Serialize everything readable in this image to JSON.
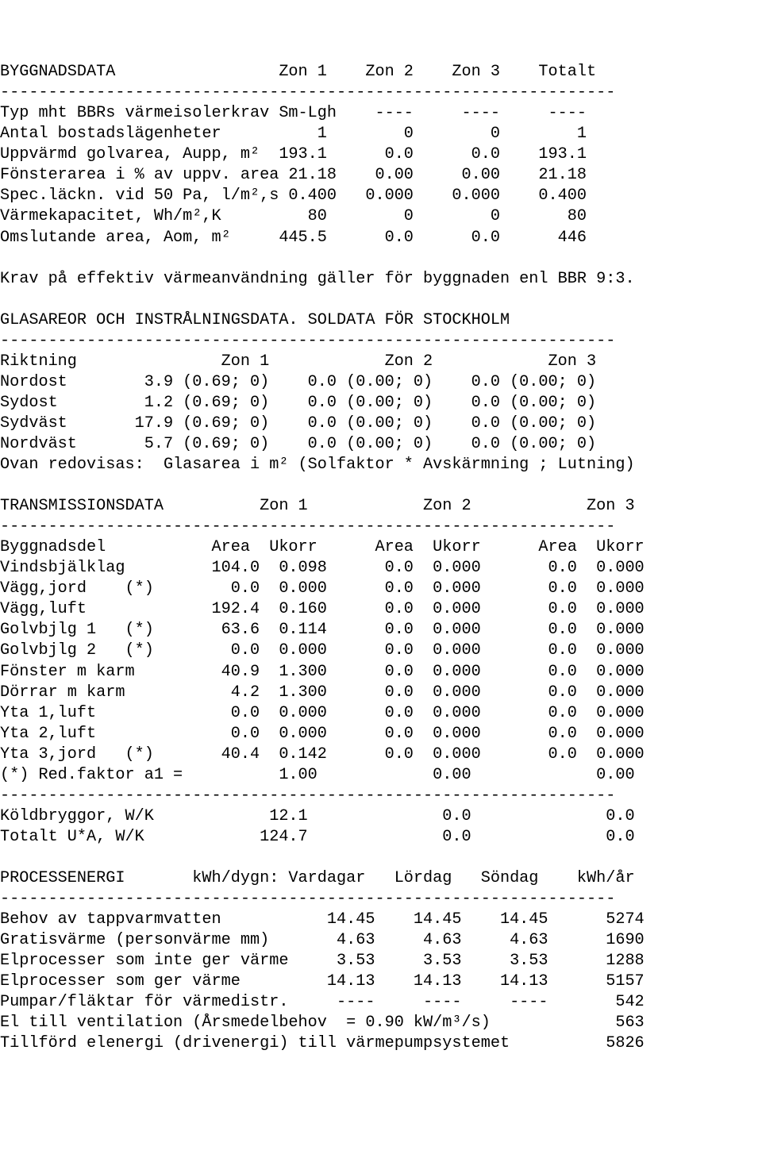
{
  "lines": [
    "BYGGNADSDATA                 Zon 1    Zon 2    Zon 3    Totalt",
    "----------------------------------------------------------------",
    "Typ mht BBRs värmeisolerkrav Sm-Lgh    ----     ----     ----",
    "Antal bostadslägenheter          1        0        0        1",
    "Uppvärmd golvarea, Aupp, m²  193.1      0.0      0.0    193.1",
    "Fönsterarea i % av uppv. area 21.18    0.00     0.00    21.18",
    "Spec.läckn. vid 50 Pa, l/m²,s 0.400   0.000    0.000    0.400",
    "Värmekapacitet, Wh/m²,K         80        0        0       80",
    "Omslutande area, Aom, m²     445.5      0.0      0.0      446",
    "",
    "Krav på effektiv värmeanvändning gäller för byggnaden enl BBR 9:3.",
    "",
    "GLASAREOR OCH INSTRÅLNINGSDATA. SOLDATA FÖR STOCKHOLM",
    "----------------------------------------------------------------",
    "Riktning               Zon 1            Zon 2            Zon 3",
    "Nordost        3.9 (0.69; 0)    0.0 (0.00; 0)    0.0 (0.00; 0)",
    "Sydost         1.2 (0.69; 0)    0.0 (0.00; 0)    0.0 (0.00; 0)",
    "Sydväst       17.9 (0.69; 0)    0.0 (0.00; 0)    0.0 (0.00; 0)",
    "Nordväst       5.7 (0.69; 0)    0.0 (0.00; 0)    0.0 (0.00; 0)",
    "Ovan redovisas:  Glasarea i m² (Solfaktor * Avskärmning ; Lutning)",
    "",
    "TRANSMISSIONSDATA          Zon 1            Zon 2            Zon 3",
    "----------------------------------------------------------------",
    "Byggnadsdel           Area  Ukorr      Area  Ukorr      Area  Ukorr",
    "Vindsbjälklag         104.0  0.098      0.0  0.000       0.0  0.000",
    "Vägg,jord    (*)        0.0  0.000      0.0  0.000       0.0  0.000",
    "Vägg,luft             192.4  0.160      0.0  0.000       0.0  0.000",
    "Golvbjlg 1   (*)       63.6  0.114      0.0  0.000       0.0  0.000",
    "Golvbjlg 2   (*)        0.0  0.000      0.0  0.000       0.0  0.000",
    "Fönster m karm         40.9  1.300      0.0  0.000       0.0  0.000",
    "Dörrar m karm           4.2  1.300      0.0  0.000       0.0  0.000",
    "Yta 1,luft              0.0  0.000      0.0  0.000       0.0  0.000",
    "Yta 2,luft              0.0  0.000      0.0  0.000       0.0  0.000",
    "Yta 3,jord   (*)       40.4  0.142      0.0  0.000       0.0  0.000",
    "(*) Red.faktor a1 =          1.00            0.00             0.00",
    "----------------------------------------------------------------",
    "Köldbryggor, W/K            12.1              0.0              0.0",
    "Totalt U*A, W/K            124.7              0.0              0.0",
    "",
    "PROCESSENERGI       kWh/dygn: Vardagar   Lördag   Söndag    kWh/år",
    "----------------------------------------------------------------",
    "Behov av tappvarmvatten           14.45    14.45    14.45      5274",
    "Gratisvärme (personvärme mm)       4.63     4.63     4.63      1690",
    "Elprocesser som inte ger värme     3.53     3.53     3.53      1288",
    "Elprocesser som ger värme         14.13    14.13    14.13      5157",
    "Pumpar/fläktar för värmedistr.     ----     ----     ----       542",
    "El till ventilation (Årsmedelbehov  = 0.90 kW/m³/s)             563",
    "Tillförd elenergi (drivenergi) till värmepumpsystemet          5826"
  ]
}
